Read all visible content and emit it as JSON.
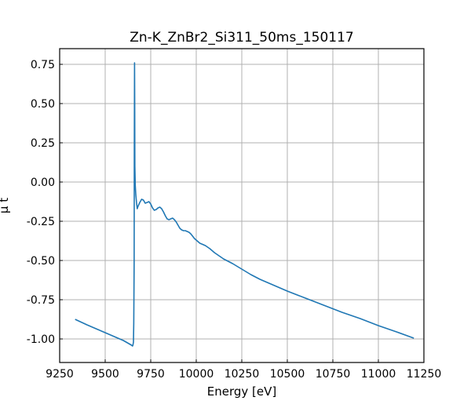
{
  "chart_data": {
    "type": "line",
    "title": "Zn-K_ZnBr2_Si311_50ms_150117",
    "xlabel": "Energy [eV]",
    "ylabel": "μ t",
    "xlim": [
      9250,
      11250
    ],
    "ylim": [
      -1.15,
      0.85
    ],
    "grid": true,
    "x_ticks": [
      9250,
      9500,
      9750,
      10000,
      10250,
      10500,
      10750,
      11000,
      11250
    ],
    "y_ticks": [
      0.75,
      0.5,
      0.25,
      0.0,
      -0.25,
      -0.5,
      -0.75,
      -1.0
    ],
    "series": [
      {
        "color": "#1f77b4",
        "x": [
          9335,
          9400,
          9450,
          9500,
          9550,
          9600,
          9630,
          9645,
          9650,
          9652,
          9655,
          9657,
          9659,
          9660,
          9661,
          9662,
          9663,
          9665,
          9668,
          9672,
          9676,
          9680,
          9690,
          9700,
          9710,
          9720,
          9730,
          9740,
          9750,
          9760,
          9770,
          9780,
          9790,
          9800,
          9810,
          9820,
          9830,
          9840,
          9850,
          9860,
          9870,
          9880,
          9890,
          9900,
          9910,
          9920,
          9930,
          9940,
          9950,
          9960,
          9970,
          9980,
          9990,
          10000,
          10010,
          10020,
          10030,
          10040,
          10050,
          10075,
          10100,
          10125,
          10150,
          10175,
          10200,
          10250,
          10300,
          10350,
          10400,
          10450,
          10500,
          10600,
          10700,
          10800,
          10900,
          11000,
          11100,
          11195
        ],
        "y": [
          -0.875,
          -0.91,
          -0.935,
          -0.96,
          -0.985,
          -1.01,
          -1.03,
          -1.04,
          -1.045,
          -1.04,
          -1.02,
          -0.9,
          -0.5,
          0.2,
          0.76,
          0.5,
          0.1,
          -0.02,
          -0.08,
          -0.13,
          -0.17,
          -0.155,
          -0.13,
          -0.11,
          -0.115,
          -0.135,
          -0.13,
          -0.125,
          -0.14,
          -0.165,
          -0.18,
          -0.175,
          -0.165,
          -0.16,
          -0.17,
          -0.19,
          -0.215,
          -0.235,
          -0.24,
          -0.235,
          -0.23,
          -0.24,
          -0.255,
          -0.275,
          -0.295,
          -0.305,
          -0.31,
          -0.31,
          -0.315,
          -0.32,
          -0.33,
          -0.345,
          -0.36,
          -0.37,
          -0.38,
          -0.39,
          -0.395,
          -0.4,
          -0.405,
          -0.425,
          -0.45,
          -0.47,
          -0.49,
          -0.505,
          -0.52,
          -0.555,
          -0.59,
          -0.62,
          -0.645,
          -0.67,
          -0.695,
          -0.74,
          -0.785,
          -0.83,
          -0.87,
          -0.915,
          -0.955,
          -0.995
        ]
      }
    ]
  }
}
